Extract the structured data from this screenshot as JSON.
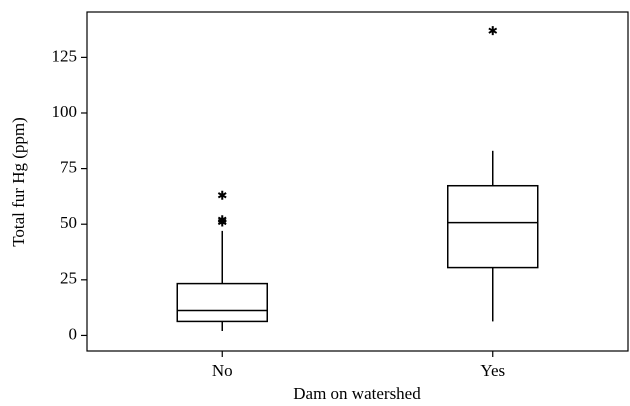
{
  "chart_data": {
    "type": "box",
    "x_label": "Dam on watershed",
    "y_label": "Total fur Hg (ppm)",
    "categories": [
      "No",
      "Yes"
    ],
    "boxes": [
      {
        "min": 2,
        "q1": 6.3,
        "median": 11.2,
        "q3": 23.3,
        "max": 47,
        "outliers": [
          51,
          52,
          63
        ]
      },
      {
        "min": 6.3,
        "q1": 30.5,
        "median": 50.7,
        "q3": 67.3,
        "max": 83,
        "outliers": [
          137
        ]
      }
    ],
    "color": "#000000",
    "ylim": [
      -7,
      145.4
    ],
    "yticks": [
      0,
      25,
      50,
      75,
      100,
      125
    ]
  }
}
